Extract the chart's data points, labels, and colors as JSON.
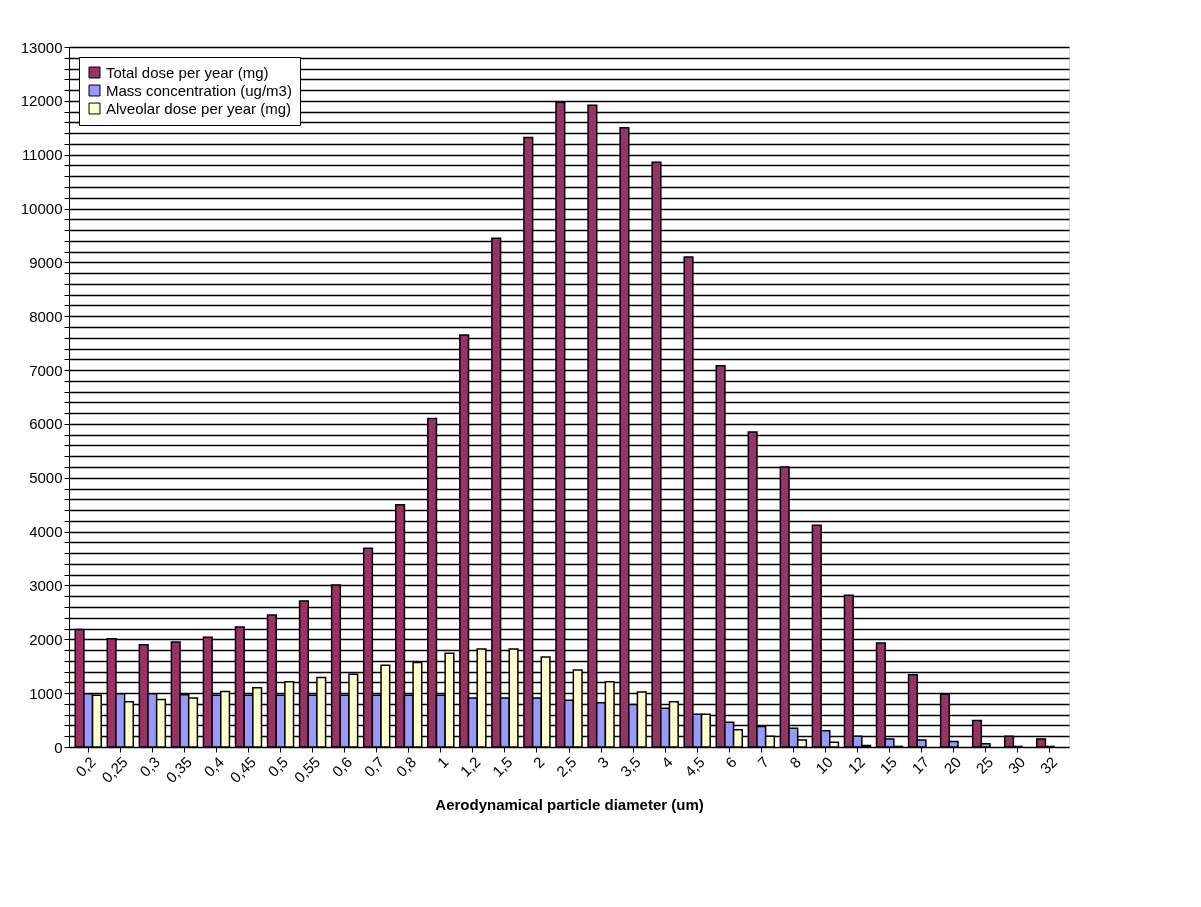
{
  "chart_data": {
    "type": "bar",
    "xlabel": "Aerodynamical particle diameter (um)",
    "categories": [
      "0,2",
      "0,25",
      "0,3",
      "0,35",
      "0,4",
      "0,45",
      "0,5",
      "0,55",
      "0,6",
      "0,7",
      "0,8",
      "1",
      "1,2",
      "1,5",
      "2",
      "2,5",
      "3",
      "3,5",
      "4",
      "4,5",
      "6",
      "7",
      "8",
      "10",
      "12",
      "15",
      "17",
      "20",
      "25",
      "30",
      "32"
    ],
    "series": [
      {
        "name": "Total dose per year (mg)",
        "color": "#993366",
        "values": [
          2180,
          2010,
          1900,
          1950,
          2040,
          2230,
          2450,
          2710,
          3010,
          3690,
          4500,
          6100,
          7650,
          9450,
          11320,
          11970,
          11920,
          11500,
          10860,
          9100,
          7080,
          5850,
          5200,
          4120,
          2820,
          1930,
          1340,
          980,
          490,
          200,
          150
        ]
      },
      {
        "name": "Mass concentration (ug/m3)",
        "color": "#9999ff",
        "values": [
          990,
          990,
          990,
          970,
          960,
          960,
          960,
          960,
          960,
          960,
          960,
          960,
          910,
          910,
          910,
          870,
          820,
          790,
          720,
          610,
          460,
          380,
          350,
          300,
          200,
          150,
          130,
          100,
          60,
          10,
          10
        ]
      },
      {
        "name": "Alveolar dose per year (mg)",
        "color": "#ffffcc",
        "values": [
          960,
          840,
          880,
          910,
          1030,
          1100,
          1210,
          1290,
          1350,
          1520,
          1570,
          1740,
          1820,
          1820,
          1670,
          1430,
          1210,
          1020,
          840,
          610,
          320,
          200,
          130,
          90,
          30,
          10,
          null,
          null,
          null,
          null,
          null
        ]
      }
    ],
    "ylim": [
      0,
      13000
    ],
    "yticks": [
      0,
      {
        "value": 200,
        "label": null
      },
      {
        "value": 400,
        "label": null
      },
      {
        "value": 600,
        "label": null
      },
      {
        "value": 800,
        "label": null
      },
      1000,
      {
        "value": 1200,
        "label": null
      },
      {
        "value": 1400,
        "label": null
      },
      {
        "value": 1600,
        "label": null
      },
      {
        "value": 1800,
        "label": null
      },
      2000,
      {
        "value": 2200,
        "label": null
      },
      {
        "value": 2400,
        "label": null
      },
      {
        "value": 2600,
        "label": null
      },
      {
        "value": 2800,
        "label": null
      },
      3000,
      {
        "value": 3200,
        "label": null
      },
      {
        "value": 3400,
        "label": null
      },
      {
        "value": 3600,
        "label": null
      },
      {
        "value": 3800,
        "label": null
      },
      4000,
      {
        "value": 4200,
        "label": null
      },
      {
        "value": 4400,
        "label": null
      },
      {
        "value": 4600,
        "label": null
      },
      {
        "value": 4800,
        "label": null
      },
      5000,
      {
        "value": 5200,
        "label": null
      },
      {
        "value": 5400,
        "label": null
      },
      {
        "value": 5600,
        "label": null
      },
      {
        "value": 5800,
        "label": null
      },
      6000,
      {
        "value": 6200,
        "label": null
      },
      {
        "value": 6400,
        "label": null
      },
      {
        "value": 6600,
        "label": null
      },
      {
        "value": 6800,
        "label": null
      },
      7000,
      {
        "value": 7200,
        "label": null
      },
      {
        "value": 7400,
        "label": null
      },
      {
        "value": 7600,
        "label": null
      },
      {
        "value": 7800,
        "label": null
      },
      8000,
      {
        "value": 8200,
        "label": null
      },
      {
        "value": 8400,
        "label": null
      },
      {
        "value": 8600,
        "label": null
      },
      {
        "value": 8800,
        "label": null
      },
      9000,
      {
        "value": 9200,
        "label": null
      },
      {
        "value": 9400,
        "label": null
      },
      {
        "value": 9600,
        "label": null
      },
      {
        "value": 9800,
        "label": null
      },
      10000,
      {
        "value": 10200,
        "label": null
      },
      {
        "value": 10400,
        "label": null
      },
      {
        "value": 10600,
        "label": null
      },
      {
        "value": 10800,
        "label": null
      },
      11000,
      {
        "value": 11200,
        "label": null
      },
      {
        "value": 11400,
        "label": null
      },
      {
        "value": 11600,
        "label": null
      },
      {
        "value": 11800,
        "label": null
      },
      12000,
      {
        "value": 12200,
        "label": null
      },
      {
        "value": 12400,
        "label": null
      },
      {
        "value": 12600,
        "label": null
      },
      {
        "value": 12800,
        "label": null
      },
      13000
    ],
    "grid": "y",
    "legend": "top left"
  }
}
